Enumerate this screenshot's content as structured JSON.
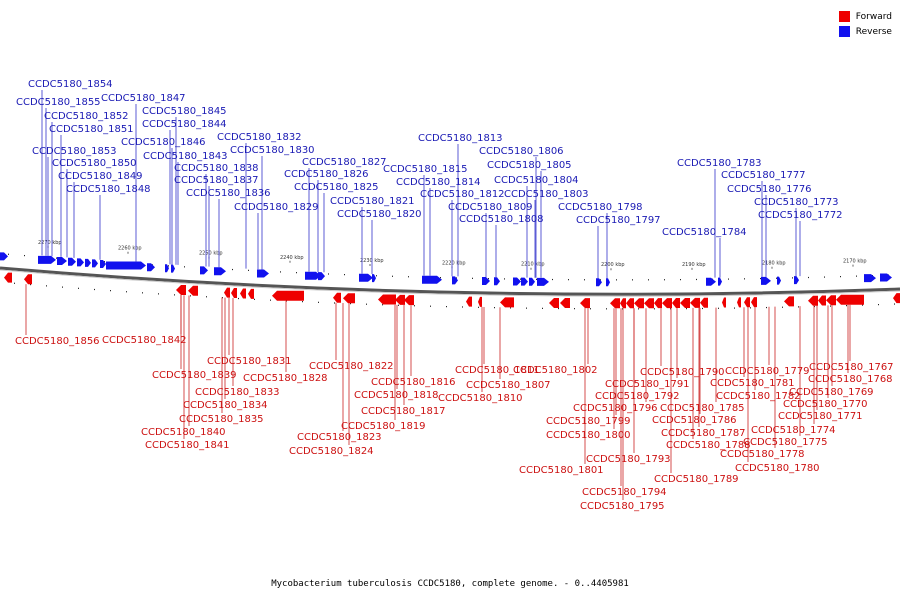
{
  "legend": {
    "forward": {
      "label": "Forward",
      "color": "#ee0000"
    },
    "reverse": {
      "label": "Reverse",
      "color": "#1111ee"
    }
  },
  "caption": "Mycobacterium tuberculosis CCDC5180, complete genome. - 0..4405981",
  "ticks": [
    "2270 kbp",
    "2260 kbp",
    "2250 kbp",
    "2240 kbp",
    "2230 kbp",
    "2220 kbp",
    "2210 kbp",
    "2200 kbp",
    "2190 kbp",
    "2180 kbp",
    "2170 kbp"
  ],
  "reverse_genes": [
    "CCDC5180_1854",
    "CCDC5180_1855",
    "CCDC5180_1847",
    "CCDC5180_1852",
    "CCDC5180_1845",
    "CCDC5180_1851",
    "CCDC5180_1844",
    "CCDC5180_1846",
    "CCDC5180_1832",
    "CCDC5180_1853",
    "CCDC5180_1843",
    "CCDC5180_1830",
    "CCDC5180_1850",
    "CCDC5180_1838",
    "CCDC5180_1827",
    "CCDC5180_1849",
    "CCDC5180_1837",
    "CCDC5180_1826",
    "CCDC5180_1848",
    "CCDC5180_1836",
    "CCDC5180_1825",
    "CCDC5180_1829",
    "CCDC5180_1821",
    "CCDC5180_1820",
    "CCDC5180_1813",
    "CCDC5180_1806",
    "CCDC5180_1815",
    "CCDC5180_1805",
    "CCDC5180_1814",
    "CCDC5180_1804",
    "CCDC5180_1812",
    "CCDC5180_1803",
    "CCDC5180_1809",
    "CCDC5180_1798",
    "CCDC5180_1808",
    "CCDC5180_1797",
    "CCDC5180_1783",
    "CCDC5180_1777",
    "CCDC5180_1776",
    "CCDC5180_1773",
    "CCDC5180_1772",
    "CCDC5180_1784"
  ],
  "forward_genes": [
    "CCDC5180_1856",
    "CCDC5180_1842",
    "CCDC5180_1831",
    "CCDC5180_1839",
    "CCDC5180_1828",
    "CCDC5180_1833",
    "CCDC5180_1834",
    "CCDC5180_1835",
    "CCDC5180_1840",
    "CCDC5180_1841",
    "CCDC5180_1822",
    "CCDC5180_1816",
    "CCDC5180_1818",
    "CCDC5180_1817",
    "CCDC5180_1819",
    "CCDC5180_1823",
    "CCDC5180_1824",
    "CCDC5180_1811",
    "CCDC5180_1807",
    "CCDC5180_1810",
    "CCDC5180_1802",
    "CCDC5180_1792",
    "CCDC5180_1796",
    "CCDC5180_1799",
    "CCDC5180_1800",
    "CCDC5180_1801",
    "CCDC5180_1790",
    "CCDC5180_1791",
    "CCDC5180_1793",
    "CCDC5180_1794",
    "CCDC5180_1795",
    "CCDC5180_1789",
    "CCDC5180_1785",
    "CCDC5180_1786",
    "CCDC5180_1787",
    "CCDC5180_1788",
    "CCDC5180_1779",
    "CCDC5180_1781",
    "CCDC5180_1782",
    "CCDC5180_1778",
    "CCDC5180_1780",
    "CCDC5180_1767",
    "CCDC5180_1768",
    "CCDC5180_1769",
    "CCDC5180_1770",
    "CCDC5180_1771",
    "CCDC5180_1774",
    "CCDC5180_1775"
  ]
}
